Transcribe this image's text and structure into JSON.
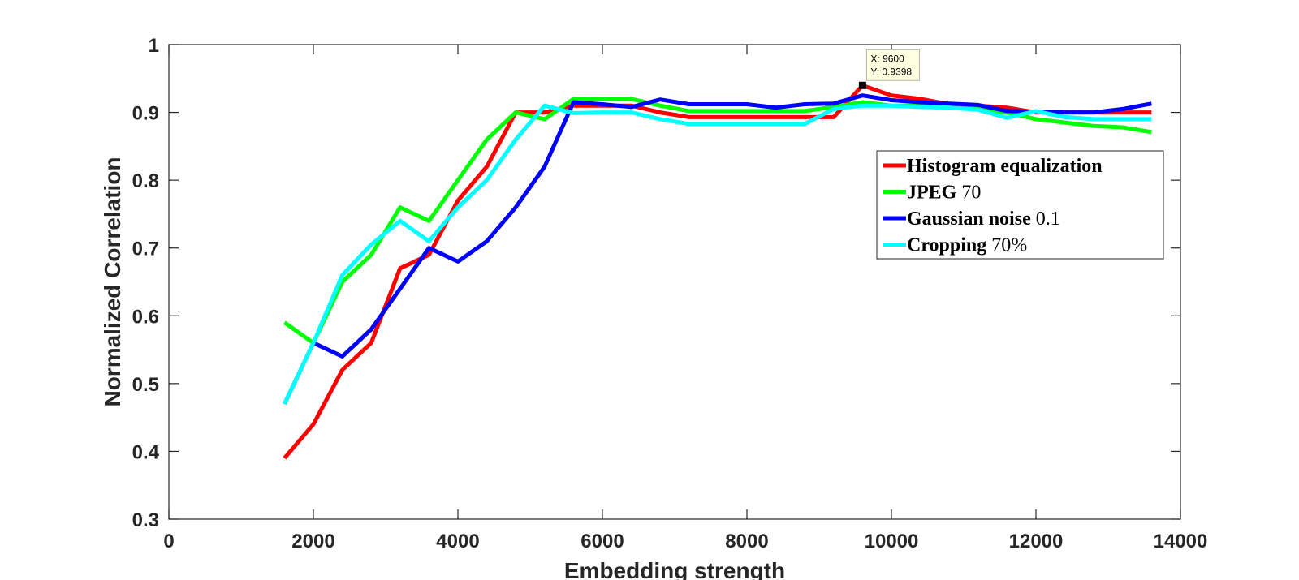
{
  "chart_data": {
    "type": "line",
    "title": "",
    "xlabel": "Embedding strength",
    "ylabel": "Normalized Correlation",
    "xlim": [
      0,
      14000
    ],
    "ylim": [
      0.3,
      1
    ],
    "xticks": [
      0,
      2000,
      4000,
      6000,
      8000,
      10000,
      12000,
      14000
    ],
    "xtick_labels": [
      "0",
      "2000",
      "4000",
      "6000",
      "8000",
      "10000",
      "12000",
      "14000"
    ],
    "yticks": [
      0.3,
      0.4,
      0.5,
      0.6,
      0.7,
      0.8,
      0.9,
      1
    ],
    "ytick_labels": [
      "0.3",
      "0.4",
      "0.5",
      "0.6",
      "0.7",
      "0.8",
      "0.9",
      "1"
    ],
    "grid": false,
    "legend_position": "right",
    "x": [
      1600,
      2000,
      2400,
      2800,
      3200,
      3600,
      4000,
      4400,
      4800,
      5200,
      5600,
      6000,
      6400,
      6800,
      7200,
      7600,
      8000,
      8400,
      8800,
      9200,
      9600,
      10000,
      10400,
      10800,
      11200,
      11600,
      12000,
      12400,
      12800,
      13200,
      13600
    ],
    "series": [
      {
        "name": "Histogram equalization",
        "name_main": "Histogram equalization",
        "name_suffix": "",
        "color": "#ff0000",
        "values": [
          0.39,
          0.44,
          0.52,
          0.56,
          0.67,
          0.69,
          0.77,
          0.82,
          0.9,
          0.9,
          0.91,
          0.91,
          0.91,
          0.9,
          0.893,
          0.893,
          0.893,
          0.893,
          0.893,
          0.893,
          0.9398,
          0.925,
          0.92,
          0.912,
          0.91,
          0.907,
          0.9,
          0.9,
          0.9,
          0.9,
          0.9
        ]
      },
      {
        "name": "JPEG 70",
        "name_main": "JPEG",
        "name_suffix": "70",
        "color": "#00ff00",
        "values": [
          0.59,
          0.56,
          0.65,
          0.69,
          0.76,
          0.74,
          0.8,
          0.86,
          0.9,
          0.89,
          0.92,
          0.92,
          0.92,
          0.91,
          0.902,
          0.902,
          0.902,
          0.902,
          0.902,
          0.908,
          0.915,
          0.91,
          0.91,
          0.91,
          0.905,
          0.9,
          0.89,
          0.885,
          0.88,
          0.878,
          0.871
        ]
      },
      {
        "name": "Gaussian noise 0.1",
        "name_main": "Gaussian noise",
        "name_suffix": "0.1",
        "color": "#0000ff",
        "values": [
          0.47,
          0.56,
          0.54,
          0.58,
          0.64,
          0.7,
          0.68,
          0.71,
          0.76,
          0.82,
          0.915,
          0.912,
          0.908,
          0.919,
          0.912,
          0.912,
          0.912,
          0.907,
          0.912,
          0.913,
          0.925,
          0.918,
          0.915,
          0.913,
          0.911,
          0.902,
          0.901,
          0.9,
          0.9,
          0.905,
          0.913
        ]
      },
      {
        "name": "Cropping 70%",
        "name_main": "Cropping",
        "name_suffix": "70%",
        "color": "#00ffff",
        "values": [
          0.47,
          0.56,
          0.66,
          0.705,
          0.74,
          0.71,
          0.76,
          0.8,
          0.86,
          0.91,
          0.899,
          0.9,
          0.9,
          0.89,
          0.883,
          0.883,
          0.883,
          0.883,
          0.883,
          0.905,
          0.91,
          0.91,
          0.908,
          0.907,
          0.904,
          0.892,
          0.902,
          0.893,
          0.89,
          0.89,
          0.89
        ]
      }
    ],
    "datatip": {
      "series": "Histogram equalization",
      "x": 9600,
      "y": 0.9398,
      "x_label": "X: 9600",
      "y_label": "Y: 0.9398"
    }
  }
}
